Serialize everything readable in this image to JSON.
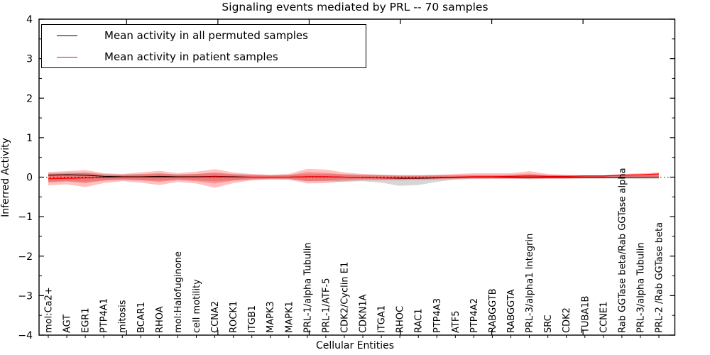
{
  "title": "Signaling events mediated by PRL -- 70 samples",
  "legend": {
    "items": [
      {
        "label": "Mean activity in all permuted samples",
        "color": "#000000"
      },
      {
        "label": "Mean activity in patient samples",
        "color": "#ff0000"
      }
    ]
  },
  "axes": {
    "xlabel": "Cellular Entities",
    "ylabel": "Inferred Activity"
  },
  "colors": {
    "permuted_line": "#000000",
    "patient_line": "#ff0000",
    "patient_band": "#ff2020",
    "permuted_band": "#8a8a8a",
    "zero_line": "#000000",
    "axis": "#000000"
  },
  "chart_data": {
    "type": "line",
    "title": "Signaling events mediated by PRL -- 70 samples",
    "xlabel": "Cellular Entities",
    "ylabel": "Inferred Activity",
    "ylim": [
      -4,
      4
    ],
    "yticks": [
      -4,
      -3,
      -2,
      -1,
      0,
      1,
      2,
      3,
      4
    ],
    "y_minor_step": 0.5,
    "grid": false,
    "zero_line_dotted": true,
    "legend_position": "upper left",
    "categories": [
      "mol:Ca2+",
      "AGT",
      "EGR1",
      "PTP4A1",
      "mitosis",
      "BCAR1",
      "RHOA",
      "mol:Halofuginone",
      "cell motility",
      "CCNA2",
      "ROCK1",
      "ITGB1",
      "MAPK3",
      "MAPK1",
      "PRL-1/alpha Tubulin",
      "PRL-1/ATF-5",
      "CDK2/Cyclin E1",
      "CDKN1A",
      "ITGA1",
      "RHOC",
      "RAC1",
      "PTP4A3",
      "ATF5",
      "PTP4A2",
      "RABGGTB",
      "RABGGTA",
      "PRL-3/alpha1 Integrin",
      "SRC",
      "CDK2",
      "TUBA1B",
      "CCNE1",
      "Rab GGTase beta/Rab GGTase alpha",
      "PRL-3/alpha Tubulin",
      "PRL-2 /Rab GGTase beta"
    ],
    "series": [
      {
        "name": "Mean activity in all permuted samples",
        "color": "#000000",
        "values": [
          0.05,
          0.06,
          0.05,
          0.02,
          0.01,
          0.01,
          0.02,
          0.01,
          0.01,
          0.02,
          0.01,
          0.0,
          0.0,
          0.0,
          0.01,
          0.01,
          0.0,
          -0.01,
          -0.02,
          -0.03,
          -0.03,
          -0.02,
          -0.01,
          0.0,
          0.0,
          0.0,
          0.0,
          0.0,
          0.0,
          0.0,
          0.0,
          0.0,
          0.0,
          0.0
        ]
      },
      {
        "name": "Mean activity in patient samples",
        "color": "#ff0000",
        "values": [
          -0.04,
          -0.03,
          -0.02,
          -0.01,
          0.0,
          0.0,
          0.0,
          0.0,
          0.0,
          0.01,
          0.0,
          0.0,
          0.0,
          0.0,
          0.01,
          0.01,
          0.0,
          -0.01,
          -0.02,
          -0.02,
          -0.02,
          -0.01,
          0.0,
          0.01,
          0.01,
          0.02,
          0.03,
          0.02,
          0.02,
          0.03,
          0.03,
          0.05,
          0.06,
          0.08
        ]
      }
    ],
    "bands": [
      {
        "name": "permuted samples range",
        "color": "#8a8a8a",
        "opacity": 0.35,
        "upper": [
          0.1,
          0.12,
          0.12,
          0.08,
          0.07,
          0.08,
          0.09,
          0.07,
          0.08,
          0.1,
          0.08,
          0.06,
          0.05,
          0.06,
          0.08,
          0.08,
          0.07,
          0.06,
          0.06,
          0.05,
          0.05,
          0.05,
          0.04,
          0.04,
          0.04,
          0.04,
          0.05,
          0.04,
          0.04,
          0.04,
          0.04,
          0.04,
          0.05,
          0.05
        ],
        "lower": [
          -0.12,
          -0.1,
          -0.12,
          -0.08,
          -0.07,
          -0.08,
          -0.09,
          -0.07,
          -0.08,
          -0.1,
          -0.08,
          -0.06,
          -0.05,
          -0.06,
          -0.1,
          -0.1,
          -0.12,
          -0.1,
          -0.14,
          -0.22,
          -0.2,
          -0.12,
          -0.06,
          -0.05,
          -0.04,
          -0.04,
          -0.05,
          -0.04,
          -0.04,
          -0.04,
          -0.04,
          -0.04,
          -0.05,
          -0.05
        ]
      },
      {
        "name": "patient samples outer range",
        "color": "#ff2020",
        "opacity": 0.28,
        "upper": [
          0.13,
          0.15,
          0.18,
          0.1,
          0.08,
          0.12,
          0.16,
          0.1,
          0.14,
          0.2,
          0.12,
          0.08,
          0.06,
          0.08,
          0.21,
          0.19,
          0.12,
          0.08,
          0.06,
          0.05,
          0.05,
          0.06,
          0.08,
          0.1,
          0.1,
          0.1,
          0.15,
          0.08,
          0.06,
          0.05,
          0.05,
          0.08,
          0.1,
          0.12
        ],
        "lower": [
          -0.21,
          -0.18,
          -0.25,
          -0.15,
          -0.1,
          -0.14,
          -0.2,
          -0.12,
          -0.16,
          -0.27,
          -0.15,
          -0.08,
          -0.06,
          -0.06,
          -0.16,
          -0.15,
          -0.1,
          -0.08,
          -0.08,
          -0.08,
          -0.07,
          -0.06,
          -0.05,
          -0.04,
          -0.04,
          -0.04,
          -0.05,
          -0.04,
          -0.04,
          -0.03,
          -0.03,
          -0.02,
          -0.02,
          -0.01
        ]
      },
      {
        "name": "patient samples inner range",
        "color": "#ff2020",
        "opacity": 0.3,
        "upper": [
          0.08,
          0.09,
          0.11,
          0.06,
          0.05,
          0.07,
          0.1,
          0.06,
          0.08,
          0.12,
          0.07,
          0.05,
          0.04,
          0.05,
          0.13,
          0.11,
          0.07,
          0.05,
          0.04,
          0.03,
          0.03,
          0.04,
          0.05,
          0.06,
          0.06,
          0.06,
          0.09,
          0.05,
          0.04,
          0.03,
          0.03,
          0.05,
          0.06,
          0.08
        ],
        "lower": [
          -0.13,
          -0.11,
          -0.15,
          -0.09,
          -0.06,
          -0.08,
          -0.12,
          -0.07,
          -0.1,
          -0.16,
          -0.09,
          -0.05,
          -0.04,
          -0.04,
          -0.1,
          -0.09,
          -0.06,
          -0.05,
          -0.05,
          -0.05,
          -0.04,
          -0.04,
          -0.03,
          -0.02,
          -0.02,
          -0.02,
          -0.03,
          -0.02,
          -0.02,
          -0.02,
          -0.02,
          -0.01,
          -0.01,
          0.0
        ]
      }
    ]
  }
}
